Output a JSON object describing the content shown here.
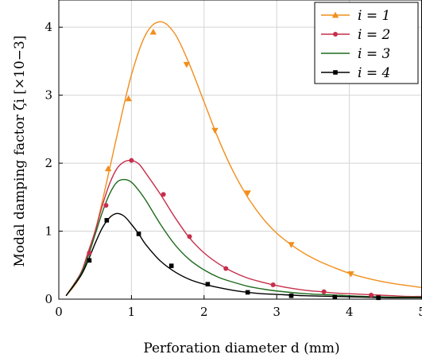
{
  "chart_data": {
    "type": "line",
    "xlabel": "Perforation diameter d (mm)",
    "ylabel": "Modal damping factor ζi [×10−3]",
    "xlim": [
      0,
      5
    ],
    "ylim": [
      0,
      4.4
    ],
    "xticks": [
      0,
      1,
      2,
      3,
      4,
      5
    ],
    "yticks": [
      0,
      1,
      2,
      3,
      4
    ],
    "grid": true,
    "legend_position": "top-right",
    "series": [
      {
        "name": "i = 1",
        "color": "#f28e1c",
        "marker": "triangle",
        "x": [
          0.1,
          0.3,
          0.5,
          0.7,
          0.8,
          1.0,
          1.2,
          1.4,
          1.6,
          1.8,
          2.0,
          2.2,
          2.4,
          2.6,
          2.8,
          3.0,
          3.2,
          3.4,
          3.6,
          3.8,
          4.0,
          4.2,
          4.4,
          4.6,
          4.8,
          5.0
        ],
        "values": [
          0.05,
          0.35,
          1.0,
          1.92,
          2.4,
          3.3,
          3.9,
          4.08,
          3.9,
          3.45,
          2.9,
          2.35,
          1.88,
          1.5,
          1.2,
          0.97,
          0.8,
          0.66,
          0.55,
          0.46,
          0.38,
          0.32,
          0.27,
          0.23,
          0.2,
          0.17
        ],
        "markers_x": [
          0.68,
          0.96,
          1.3,
          1.76,
          2.15,
          2.6,
          3.2,
          4.02
        ],
        "markers_y": [
          1.92,
          2.95,
          3.93,
          3.45,
          2.48,
          1.56,
          0.8,
          0.37
        ]
      },
      {
        "name": "i = 2",
        "color": "#c62f4b",
        "marker": "circle",
        "x": [
          0.1,
          0.3,
          0.4,
          0.5,
          0.6,
          0.7,
          0.8,
          0.9,
          1.0,
          1.1,
          1.2,
          1.4,
          1.6,
          1.8,
          2.0,
          2.2,
          2.4,
          2.6,
          2.8,
          3.0,
          3.2,
          3.4,
          3.6,
          3.8,
          4.0,
          4.2,
          4.4,
          4.6,
          4.8,
          5.0
        ],
        "values": [
          0.05,
          0.38,
          0.68,
          1.0,
          1.38,
          1.7,
          1.92,
          2.02,
          2.04,
          1.99,
          1.85,
          1.54,
          1.2,
          0.9,
          0.68,
          0.52,
          0.4,
          0.31,
          0.25,
          0.2,
          0.16,
          0.13,
          0.11,
          0.09,
          0.08,
          0.07,
          0.06,
          0.05,
          0.04,
          0.04
        ],
        "markers_x": [
          0.42,
          0.65,
          1.0,
          1.44,
          1.8,
          2.3,
          2.95,
          3.65,
          4.3
        ],
        "markers_y": [
          0.68,
          1.38,
          2.04,
          1.54,
          0.92,
          0.45,
          0.21,
          0.11,
          0.06
        ]
      },
      {
        "name": "i = 3",
        "color": "#1e6b1e",
        "marker": "none",
        "x": [
          0.1,
          0.3,
          0.4,
          0.5,
          0.6,
          0.7,
          0.8,
          0.9,
          1.0,
          1.1,
          1.2,
          1.4,
          1.6,
          1.8,
          2.0,
          2.2,
          2.4,
          2.6,
          2.8,
          3.0,
          3.4,
          3.8,
          4.2,
          4.6,
          5.0
        ],
        "values": [
          0.05,
          0.36,
          0.62,
          0.95,
          1.28,
          1.55,
          1.72,
          1.76,
          1.72,
          1.6,
          1.45,
          1.1,
          0.8,
          0.58,
          0.43,
          0.32,
          0.25,
          0.19,
          0.15,
          0.12,
          0.08,
          0.06,
          0.04,
          0.03,
          0.03
        ]
      },
      {
        "name": "i = 4",
        "color": "#000000",
        "marker": "square",
        "x": [
          0.1,
          0.3,
          0.4,
          0.5,
          0.6,
          0.7,
          0.8,
          0.9,
          1.0,
          1.1,
          1.2,
          1.4,
          1.6,
          1.8,
          2.0,
          2.2,
          2.4,
          2.6,
          2.8,
          3.0,
          3.4,
          3.8,
          4.2,
          4.6,
          5.0
        ],
        "values": [
          0.05,
          0.34,
          0.56,
          0.82,
          1.05,
          1.2,
          1.26,
          1.22,
          1.1,
          0.96,
          0.8,
          0.56,
          0.4,
          0.29,
          0.22,
          0.17,
          0.13,
          0.1,
          0.08,
          0.07,
          0.05,
          0.04,
          0.03,
          0.02,
          0.02
        ],
        "markers_x": [
          0.42,
          0.66,
          1.1,
          1.55,
          2.05,
          2.6,
          3.2,
          3.8,
          4.4
        ],
        "markers_y": [
          0.57,
          1.16,
          0.96,
          0.49,
          0.22,
          0.1,
          0.05,
          0.03,
          0.02
        ]
      }
    ]
  }
}
